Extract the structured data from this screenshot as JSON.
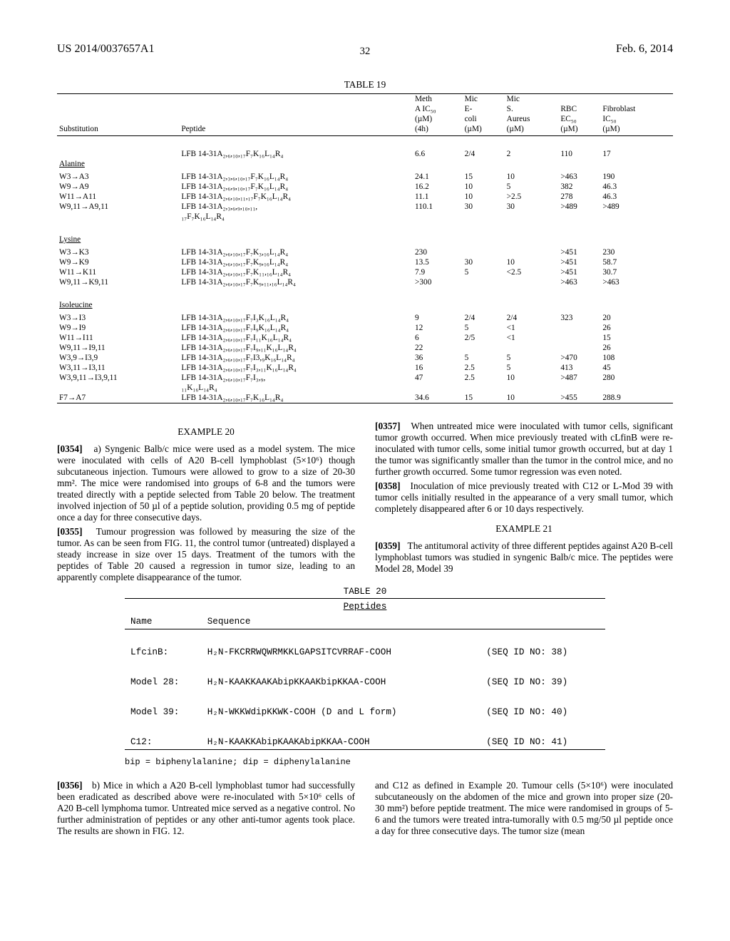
{
  "header": {
    "left": "US 2014/0037657A1",
    "right": "Feb. 6, 2014",
    "page": "32"
  },
  "table19": {
    "caption": "TABLE 19",
    "columns": [
      "Substitution",
      "Peptide",
      "Meth A IC₅₀ (µM) (4h)",
      "Mic E-coli (µM)",
      "Mic S. Aureus (µM)",
      "RBC EC₅₀ (µM)",
      "Fibroblast IC₅₀ (µM)"
    ],
    "groups": [
      {
        "header_row": [
          "",
          "LFB 14-31A₂,₆,₁₀,₁₇F₇K₁₆L₁₄R₄",
          "6.6",
          "2/4",
          "2",
          "110",
          "17"
        ],
        "label": "Alanine",
        "rows": [
          [
            "W3→A3",
            "LFB 14-31A₂,₃,₆,₁₀,₁₇F₇K₁₆L₁₄R₄",
            "24.1",
            "15",
            "10",
            ">463",
            "190"
          ],
          [
            "W9→A9",
            "LFB 14-31A₂,₆,₉,₁₀,₁₇F₇K₁₆L₁₄R₄",
            "16.2",
            "10",
            "5",
            "382",
            "46.3"
          ],
          [
            "W11→A11",
            "LFB 14-31A₂,₆,₁₀,₁₁,₁₇F₇K₁₆L₁₄R₄",
            "11.1",
            "10",
            ">2.5",
            "278",
            "46.3"
          ],
          [
            "W9,11→A9,11",
            "LFB 14-31A₂,₃,₆,₉,₁₀,₁₁,",
            "110.1",
            "30",
            "30",
            ">489",
            ">489"
          ],
          [
            "",
            "₁₇F₇K₁₆L₁₄R₄",
            "",
            "",
            "",
            "",
            ""
          ]
        ]
      },
      {
        "label": "Lysine",
        "rows": [
          [
            "W3→K3",
            "LFB 14-31A₂,₆,₁₀,₁₇F₇K₃,₁₆L₁₄R₄",
            "230",
            "",
            "",
            ">451",
            "230"
          ],
          [
            "W9→K9",
            "LFB 14-31A₂,₆,₁₀,₁₇F₇K₉,₁₆L₁₄R₄",
            "13.5",
            "30",
            "10",
            ">451",
            "58.7"
          ],
          [
            "W11→K11",
            "LFB 14-31A₂,₆,₁₀,₁₇F₇K₁₁,₁₆L₁₄R₄",
            "7.9",
            "5",
            "<2.5",
            ">451",
            "30.7"
          ],
          [
            "W9,11→K9,11",
            "LFB 14-31A₂,₆,₁₀,₁₇F₇K₉,₁₁,₁₆L₁₄R₄",
            ">300",
            "",
            "",
            ">463",
            ">463"
          ]
        ]
      },
      {
        "label": "Isoleucine",
        "rows": [
          [
            "W3→I3",
            "LFB 14-31A₂,₆,₁₀,₁₇F₇I₃K₁₆L₁₄R₄",
            "9",
            "2/4",
            "2/4",
            "323",
            "20"
          ],
          [
            "W9→I9",
            "LFB 14-31A₂,₆,₁₀,₁₇F₇I₉K₁₆L₁₄R₄",
            "12",
            "5",
            "<1",
            "",
            "26"
          ],
          [
            "W11→I11",
            "LFB 14-31A₂,₆,₁₀,₁₇F₇I₁₁K₁₆L₁₄R₄",
            "6",
            "2/5",
            "<1",
            "",
            "15"
          ],
          [
            "W9,11→I9,11",
            "LFB 14-31A₂,₆,₁₀,₁₇F₇I₉,₁₁K₁₆L₁₄R₄",
            "22",
            "",
            "",
            "",
            "26"
          ],
          [
            "W3,9→I3,9",
            "LFB 14-31A₂,₆,₁₀,₁₇F₇I3,₉K₁₆L₁₄R₄",
            "36",
            "5",
            "5",
            ">470",
            "108"
          ],
          [
            "W3,11→I3,11",
            "LFB 14-31A₂,₆,₁₀,₁₇F₇I₃,₁₁K₁₆L₁₄R₄",
            "16",
            "2.5",
            "5",
            "413",
            "45"
          ],
          [
            "W3,9,11→I3,9,11",
            "LFB 14-31A₂,₆,₁₀,₁₇F₇I₃,₉,",
            "47",
            "2.5",
            "10",
            ">487",
            "280"
          ],
          [
            "",
            "₁₁K₁₆L₁₄R₄",
            "",
            "",
            "",
            "",
            ""
          ],
          [
            "F7→A7",
            "LFB 14-31A₂,₆,₁₀,₁₇F₇K₁₆L₁₄R₄",
            "34.6",
            "15",
            "10",
            ">455",
            "288.9"
          ]
        ]
      }
    ]
  },
  "example20": {
    "heading": "EXAMPLE 20",
    "p1_num": "[0354]",
    "p1": "a) Syngenic Balb/c mice were used as a model system. The mice were inoculated with cells of A20 B-cell lymphoblast (5×10⁶) though subcutaneous injection. Tumours were allowed to grow to a size of 20-30 mm². The mice were randomised into groups of 6-8 and the tumors were treated directly with a peptide selected from Table 20 below. The treatment involved injection of 50 µl of a peptide solution, providing 0.5 mg of peptide once a day for three consecutive days.",
    "p2_num": "[0355]",
    "p2": "Tumour progression was followed by measuring the size of the tumor. As can be seen from FIG. 11, the control tumor (untreated) displayed a steady increase in size over 15 days. Treatment of the tumors with the peptides of Table 20 caused a regression in tumor size, leading to an apparently complete disappearance of the tumor.",
    "p3_num": "[0357]",
    "p3": "When untreated mice were inoculated with tumor cells, significant tumor growth occurred. When mice previously treated with cLfinB were re-inoculated with tumor cells, some initial tumor growth occurred, but at day 1 the tumor was significantly smaller than the tumor in the control mice, and no further growth occurred. Some tumor regression was even noted.",
    "p4_num": "[0358]",
    "p4": "Inoculation of mice previously treated with C12 or L-Mod 39 with tumor cells initially resulted in the appearance of a very small tumor, which completely disappeared after 6 or 10 days respectively."
  },
  "example21": {
    "heading": "EXAMPLE 21",
    "p1_num": "[0359]",
    "p1": "The antitumoral activity of three different peptides against A20 B-cell lymphoblast tumors was studied in syngenic Balb/c mice. The peptides were Model 28, Model 39"
  },
  "table20": {
    "caption": "TABLE 20",
    "sub": "Peptides",
    "col1": "Name",
    "col2": "Sequence",
    "rows": [
      [
        "LfcinB:",
        "H₂N-FKCRRWQWRMKKLGAPSITCVRRAF-COOH",
        "(SEQ ID NO: 38)"
      ],
      [
        "Model 28:",
        "H₂N-KAAKKAAKAbipKKAAKbipKKAA-COOH",
        "(SEQ ID NO: 39)"
      ],
      [
        "Model 39:",
        "H₂N-WKKWdipKKWK-COOH (D and L form)",
        "(SEQ ID NO: 40)"
      ],
      [
        "C12:",
        "H₂N-KAAKKAbipKAAKAbipKKAA-COOH",
        "(SEQ ID NO: 41)"
      ]
    ],
    "footnote": "bip = biphenylalanine; dip = diphenylalanine"
  },
  "bottom": {
    "left_num": "[0356]",
    "left": "b) Mice in which a A20 B-cell lymphoblast tumor had successfully been eradicated as described above were re-inoculated with 5×10⁶ cells of A20 B-cell lymphoma tumor. Untreated mice served as a negative control. No further administration of peptides or any other anti-tumor agents took place. The results are shown in FIG. 12.",
    "right": "and C12 as defined in Example 20. Tumour cells (5×10⁶) were inoculated subcutaneously on the abdomen of the mice and grown into proper size (20-30 mm²) before peptide treatment. The mice were randomised in groups of 5-6 and the tumors were treated intra-tumorally with 0.5 mg/50 µl peptide once a day for three consecutive days. The tumor size (mean"
  }
}
